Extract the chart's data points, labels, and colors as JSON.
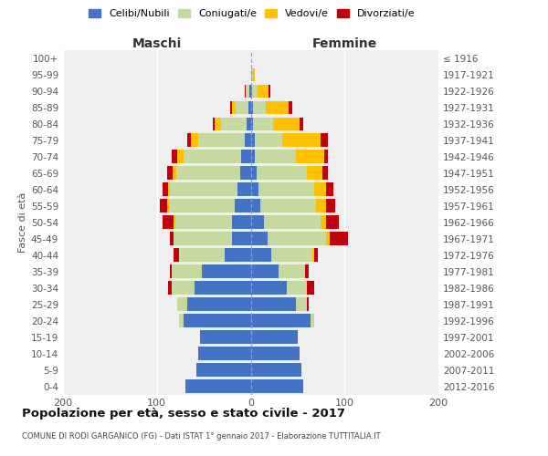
{
  "age_groups": [
    "0-4",
    "5-9",
    "10-14",
    "15-19",
    "20-24",
    "25-29",
    "30-34",
    "35-39",
    "40-44",
    "45-49",
    "50-54",
    "55-59",
    "60-64",
    "65-69",
    "70-74",
    "75-79",
    "80-84",
    "85-89",
    "90-94",
    "95-99",
    "100+"
  ],
  "birth_years": [
    "2012-2016",
    "2007-2011",
    "2002-2006",
    "1997-2001",
    "1992-1996",
    "1987-1991",
    "1982-1986",
    "1977-1981",
    "1972-1976",
    "1967-1971",
    "1962-1966",
    "1957-1961",
    "1952-1956",
    "1947-1951",
    "1942-1946",
    "1937-1941",
    "1932-1936",
    "1927-1931",
    "1922-1926",
    "1917-1921",
    "≤ 1916"
  ],
  "males_celibi": [
    70,
    58,
    56,
    54,
    72,
    68,
    60,
    52,
    28,
    20,
    20,
    17,
    14,
    11,
    10,
    6,
    4,
    2,
    1,
    0,
    0
  ],
  "males_coniugati": [
    0,
    0,
    0,
    0,
    4,
    10,
    24,
    32,
    48,
    62,
    60,
    70,
    72,
    68,
    62,
    50,
    28,
    14,
    4,
    0,
    0
  ],
  "males_vedovi": [
    0,
    0,
    0,
    0,
    0,
    0,
    0,
    0,
    0,
    0,
    2,
    2,
    2,
    4,
    6,
    8,
    6,
    4,
    0,
    0,
    0
  ],
  "males_divorziati": [
    0,
    0,
    0,
    0,
    0,
    0,
    4,
    2,
    6,
    4,
    12,
    8,
    6,
    6,
    6,
    4,
    2,
    2,
    1,
    0,
    0
  ],
  "females_nubili": [
    56,
    54,
    52,
    50,
    64,
    48,
    38,
    30,
    22,
    18,
    14,
    10,
    8,
    6,
    4,
    4,
    2,
    2,
    1,
    0,
    0
  ],
  "females_coniugate": [
    0,
    0,
    0,
    0,
    4,
    12,
    22,
    28,
    44,
    62,
    60,
    60,
    60,
    54,
    44,
    30,
    22,
    14,
    6,
    2,
    0
  ],
  "females_vedove": [
    0,
    0,
    0,
    0,
    0,
    0,
    0,
    0,
    2,
    4,
    6,
    10,
    12,
    16,
    30,
    40,
    28,
    24,
    12,
    2,
    0
  ],
  "females_divorziate": [
    0,
    0,
    0,
    0,
    0,
    2,
    8,
    4,
    4,
    20,
    14,
    10,
    8,
    6,
    4,
    8,
    4,
    4,
    2,
    0,
    0
  ],
  "colors": {
    "celibi": "#4472c4",
    "coniugati": "#c5d9a0",
    "vedovi": "#ffc000",
    "divorziati": "#c0000b"
  },
  "title": "Popolazione per età, sesso e stato civile - 2017",
  "subtitle": "COMUNE DI RODI GARGANICO (FG) - Dati ISTAT 1° gennaio 2017 - Elaborazione TUTTITALIA.IT",
  "ylabel_left": "Fasce di età",
  "label_maschi": "Maschi",
  "label_femmine": "Femmine",
  "legend_labels": [
    "Celibi/Nubili",
    "Coniugati/e",
    "Vedovi/e",
    "Divorziati/e"
  ],
  "xlim": 200,
  "fig_bg": "#ffffff",
  "plot_bg": "#efefef"
}
